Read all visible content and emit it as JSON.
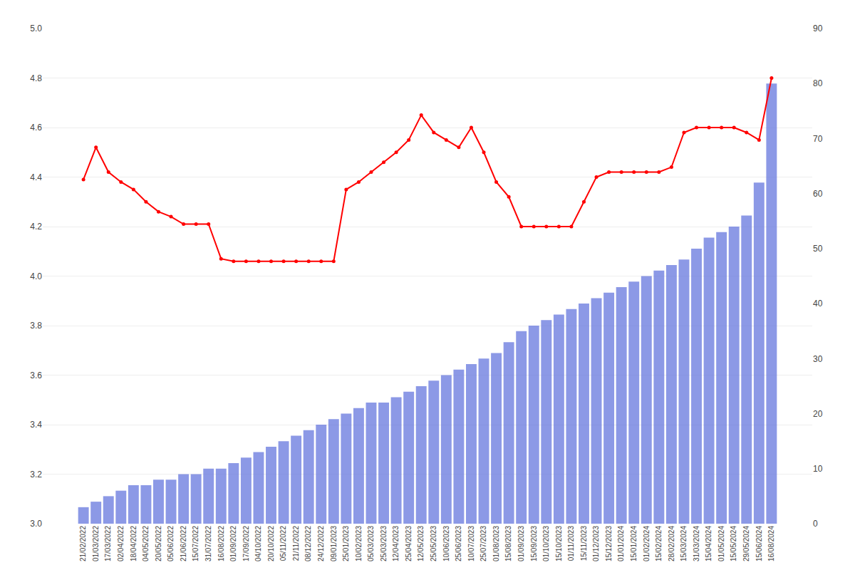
{
  "chart_data": {
    "type": "bar",
    "categories": [
      "21/02/2022",
      "01/03/2022",
      "17/03/2022",
      "02/04/2022",
      "18/04/2022",
      "04/05/2022",
      "20/05/2022",
      "05/06/2022",
      "21/06/2022",
      "15/07/2022",
      "31/07/2022",
      "16/08/2022",
      "01/09/2022",
      "17/09/2022",
      "04/10/2022",
      "20/10/2022",
      "05/11/2022",
      "21/11/2022",
      "08/12/2022",
      "24/12/2022",
      "09/01/2023",
      "25/01/2023",
      "10/02/2023",
      "05/03/2023",
      "25/03/2023",
      "12/04/2023",
      "25/04/2023",
      "12/05/2023",
      "25/05/2023",
      "10/06/2023",
      "25/06/2023",
      "10/07/2023",
      "25/07/2023",
      "01/08/2023",
      "15/08/2023",
      "01/09/2023",
      "15/09/2023",
      "01/10/2023",
      "15/10/2023",
      "01/11/2023",
      "15/11/2023",
      "01/12/2023",
      "15/12/2023",
      "01/01/2024",
      "15/01/2024",
      "01/02/2024",
      "15/02/2024",
      "28/02/2024",
      "15/03/2024",
      "31/03/2024",
      "15/04/2024",
      "01/05/2024",
      "15/05/2024",
      "29/05/2024",
      "15/06/2024",
      "16/08/2024"
    ],
    "series": [
      {
        "type": "bar",
        "axis": "y2",
        "color": "#6677dd",
        "values": [
          3,
          4,
          5,
          6,
          7,
          7,
          8,
          8,
          9,
          9,
          10,
          10,
          11,
          12,
          13,
          14,
          15,
          16,
          17,
          18,
          19,
          20,
          21,
          22,
          22,
          23,
          24,
          25,
          26,
          27,
          28,
          29,
          30,
          31,
          33,
          35,
          36,
          37,
          38,
          39,
          40,
          41,
          42,
          43,
          44,
          45,
          46,
          47,
          48,
          50,
          52,
          53,
          54,
          56,
          62,
          80
        ]
      },
      {
        "type": "line",
        "color": "#ff0000",
        "marker": "circle",
        "values": [
          4.39,
          4.52,
          4.42,
          4.38,
          4.35,
          4.3,
          4.26,
          4.24,
          4.21,
          4.21,
          4.21,
          4.07,
          4.06,
          4.06,
          4.06,
          4.06,
          4.06,
          4.06,
          4.06,
          4.06,
          4.06,
          4.35,
          4.38,
          4.42,
          4.46,
          4.5,
          4.55,
          4.65,
          4.58,
          4.55,
          4.52,
          4.6,
          4.5,
          4.38,
          4.32,
          4.2,
          4.2,
          4.2,
          4.2,
          4.2,
          4.3,
          4.4,
          4.42,
          4.42,
          4.42,
          4.42,
          4.42,
          4.44,
          4.58,
          4.6,
          4.6,
          4.6,
          4.6,
          4.58,
          4.55,
          4.8
        ]
      }
    ],
    "ylim": [
      3.0,
      5.0
    ],
    "yticks": [
      {
        "value": 3.0,
        "label": "3.0"
      },
      3.2,
      3.4,
      3.6,
      3.8,
      {
        "value": 4.0,
        "label": "4.0"
      },
      4.2,
      4.4,
      4.6,
      4.8,
      {
        "value": 5.0,
        "label": "5.0"
      }
    ],
    "y2lim": [
      0,
      90
    ],
    "y2ticks": [
      0,
      10,
      20,
      30,
      40,
      50,
      60,
      70,
      80,
      90
    ],
    "grid": true
  }
}
